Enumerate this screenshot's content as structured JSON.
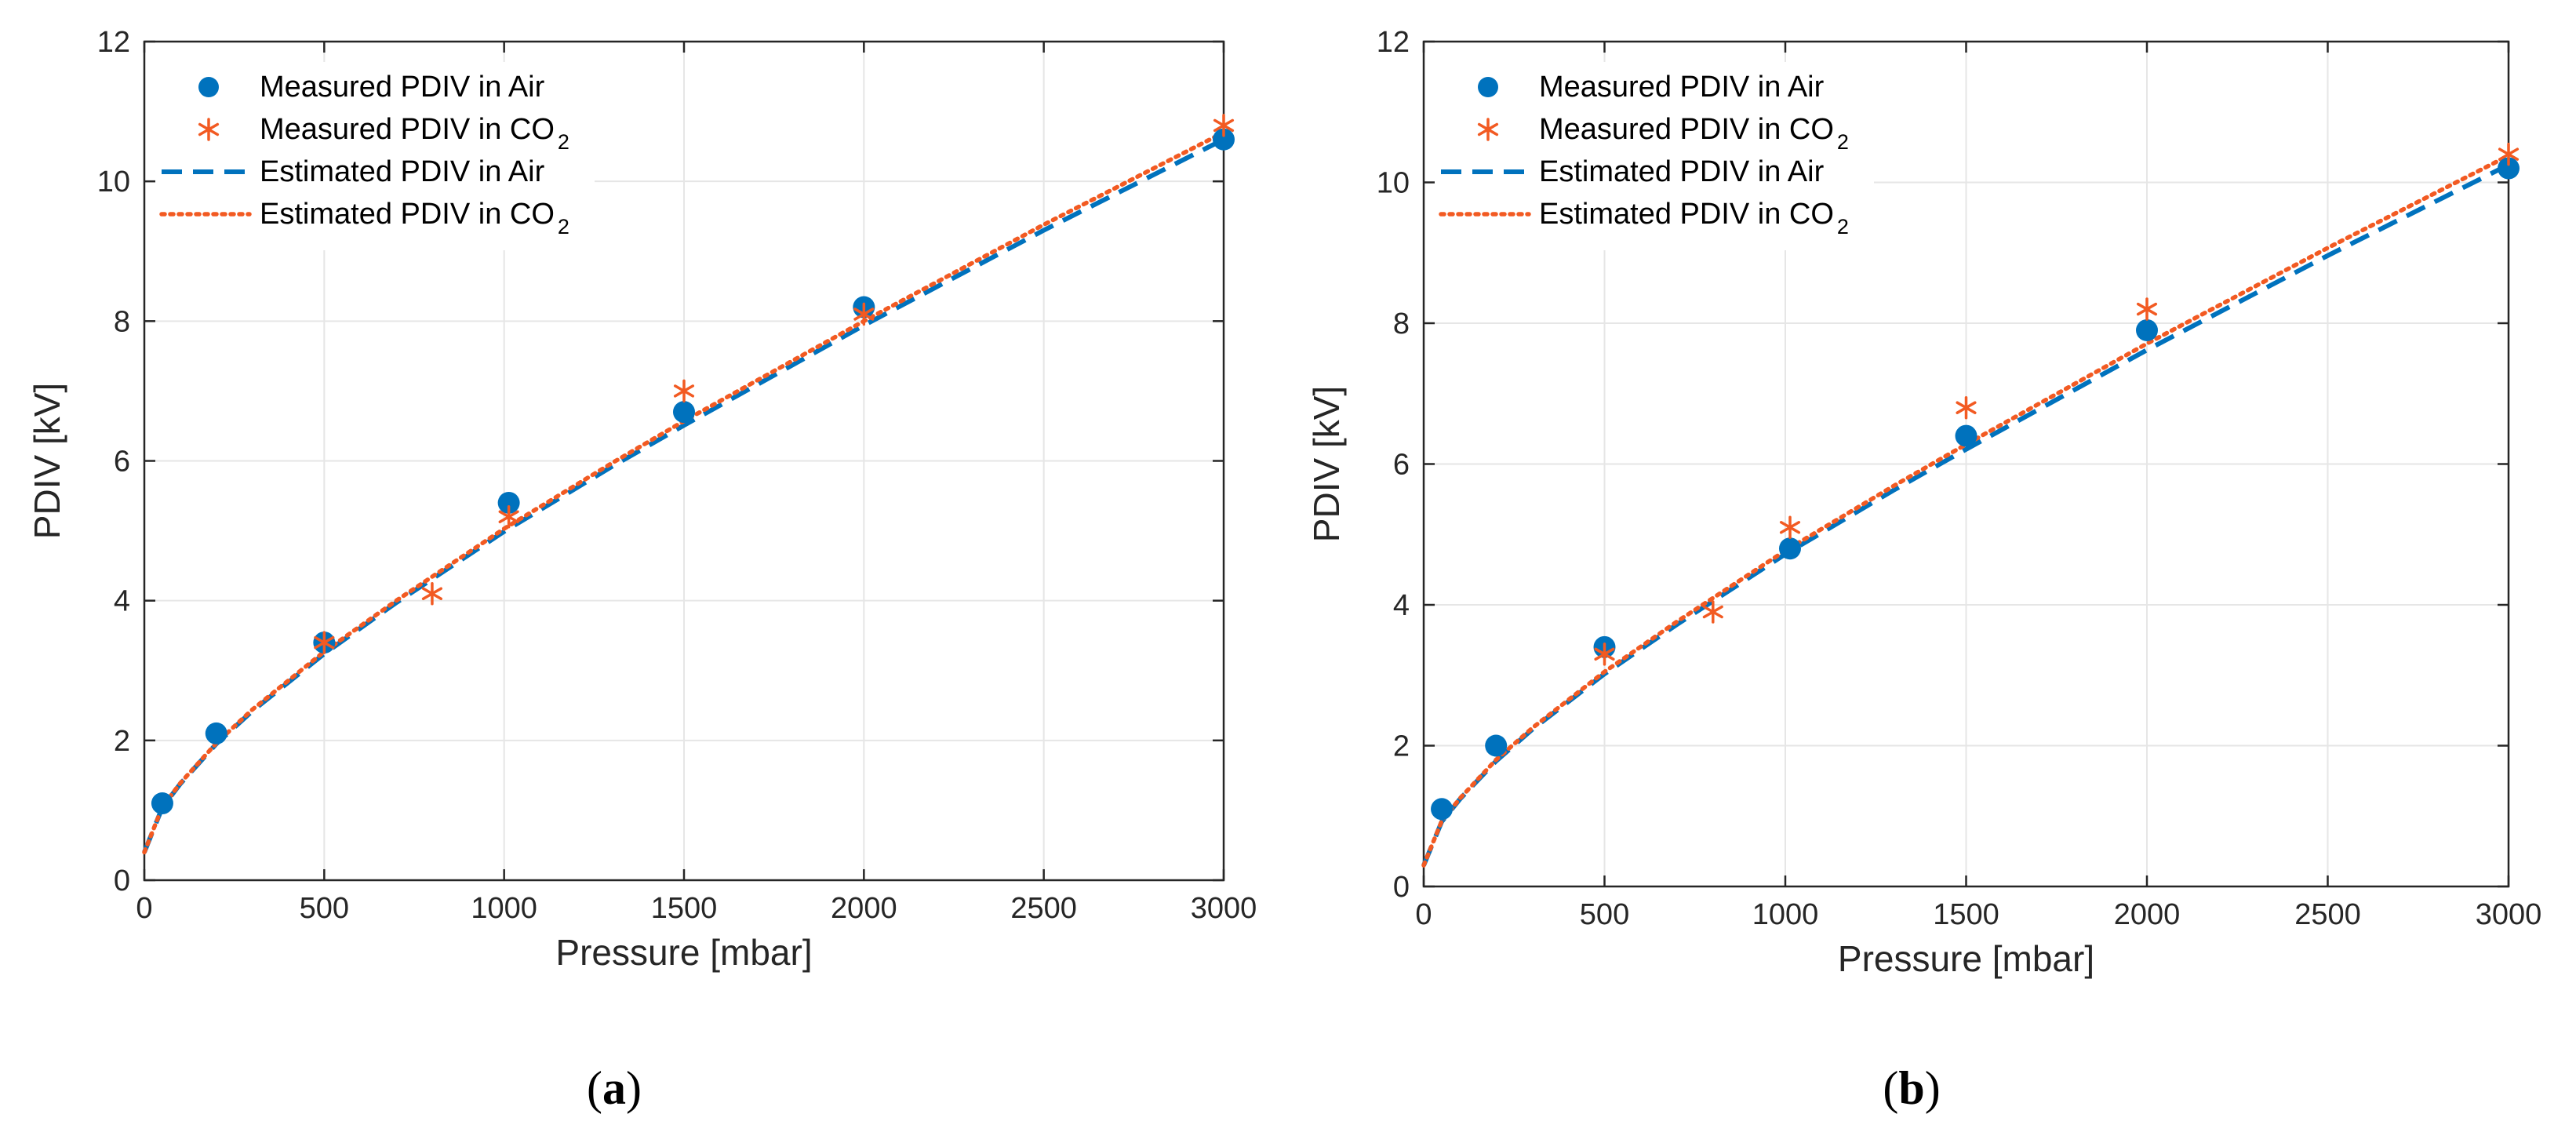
{
  "colors": {
    "air": "#0072BD",
    "co2": "#F25A22",
    "grid": "#e6e6e6",
    "axis": "#262626"
  },
  "chart_data": [
    {
      "type": "scatter",
      "panel": "a",
      "caption": {
        "open": "(",
        "letter": "a",
        "close": ")"
      },
      "xlabel": "Pressure [mbar]",
      "ylabel": "PDIV [kV]",
      "xlim": [
        0,
        3000
      ],
      "ylim": [
        0,
        12
      ],
      "xticks": [
        0,
        500,
        1000,
        1500,
        2000,
        2500,
        3000
      ],
      "yticks": [
        0,
        2,
        4,
        6,
        8,
        10,
        12
      ],
      "grid": true,
      "legend_position": "top-left",
      "series": [
        {
          "name": "Measured PDIV in Air",
          "legend": {
            "text": "Measured PDIV in Air",
            "sub": ""
          },
          "style": "markers-dot",
          "color": "#0072BD",
          "x": [
            50,
            200,
            500,
            1013,
            1500,
            2000,
            3000
          ],
          "y": [
            1.1,
            2.1,
            3.4,
            5.4,
            6.7,
            8.2,
            10.6
          ]
        },
        {
          "name": "Measured PDIV in CO2",
          "legend": {
            "text": "Measured PDIV in CO",
            "sub": "2"
          },
          "style": "markers-asterisk",
          "color": "#F25A22",
          "x": [
            500,
            800,
            1013,
            1500,
            2000,
            3000
          ],
          "y": [
            3.4,
            4.1,
            5.2,
            7.0,
            8.1,
            10.8
          ]
        },
        {
          "name": "Estimated PDIV in Air",
          "legend": {
            "text": "Estimated PDIV in Air",
            "sub": ""
          },
          "style": "dashed",
          "color": "#0072BD",
          "x": [
            0,
            50,
            100,
            200,
            300,
            500,
            700,
            1000,
            1300,
            1500,
            2000,
            2500,
            3000
          ],
          "y": [
            0.4,
            1.04,
            1.38,
            1.95,
            2.42,
            3.24,
            3.97,
            4.99,
            5.92,
            6.51,
            7.94,
            9.3,
            10.6
          ]
        },
        {
          "name": "Estimated PDIV in CO2",
          "legend": {
            "text": "Estimated PDIV in CO",
            "sub": "2"
          },
          "style": "dotted",
          "color": "#F25A22",
          "x": [
            0,
            50,
            100,
            200,
            300,
            500,
            700,
            1000,
            1300,
            1500,
            2000,
            2500,
            3000
          ],
          "y": [
            0.4,
            1.05,
            1.39,
            1.96,
            2.44,
            3.27,
            4.0,
            5.03,
            5.97,
            6.57,
            8.0,
            9.38,
            10.7
          ]
        }
      ]
    },
    {
      "type": "scatter",
      "panel": "b",
      "caption": {
        "open": "(",
        "letter": "b",
        "close": ")"
      },
      "xlabel": "Pressure [mbar]",
      "ylabel": "PDIV [kV]",
      "xlim": [
        0,
        3000
      ],
      "ylim": [
        0,
        12
      ],
      "xticks": [
        0,
        500,
        1000,
        1500,
        2000,
        2500,
        3000
      ],
      "yticks": [
        0,
        2,
        4,
        6,
        8,
        10,
        12
      ],
      "grid": true,
      "legend_position": "top-left",
      "series": [
        {
          "name": "Measured PDIV in Air",
          "legend": {
            "text": "Measured PDIV in Air",
            "sub": ""
          },
          "style": "markers-dot",
          "color": "#0072BD",
          "x": [
            50,
            200,
            500,
            1013,
            1500,
            2000,
            3000
          ],
          "y": [
            1.1,
            2.0,
            3.4,
            4.8,
            6.4,
            7.9,
            10.2
          ]
        },
        {
          "name": "Measured PDIV in CO2",
          "legend": {
            "text": "Measured PDIV in CO",
            "sub": "2"
          },
          "style": "markers-asterisk",
          "color": "#F25A22",
          "x": [
            500,
            800,
            1013,
            1500,
            2000,
            3000
          ],
          "y": [
            3.3,
            3.9,
            5.1,
            6.8,
            8.2,
            10.4
          ]
        },
        {
          "name": "Estimated PDIV in Air",
          "legend": {
            "text": "Estimated PDIV in Air",
            "sub": ""
          },
          "style": "dashed",
          "color": "#0072BD",
          "x": [
            0,
            50,
            100,
            200,
            300,
            500,
            700,
            1000,
            1300,
            1500,
            2000,
            2500,
            3000
          ],
          "y": [
            0.3,
            0.92,
            1.24,
            1.78,
            2.23,
            3.02,
            3.72,
            4.72,
            5.63,
            6.21,
            7.62,
            8.96,
            10.25
          ]
        },
        {
          "name": "Estimated PDIV in CO2",
          "legend": {
            "text": "Estimated PDIV in CO",
            "sub": "2"
          },
          "style": "dotted",
          "color": "#F25A22",
          "x": [
            0,
            50,
            100,
            200,
            300,
            500,
            700,
            1000,
            1300,
            1500,
            2000,
            2500,
            3000
          ],
          "y": [
            0.3,
            0.93,
            1.25,
            1.8,
            2.25,
            3.05,
            3.76,
            4.77,
            5.69,
            6.28,
            7.71,
            9.07,
            10.38
          ]
        }
      ]
    }
  ]
}
